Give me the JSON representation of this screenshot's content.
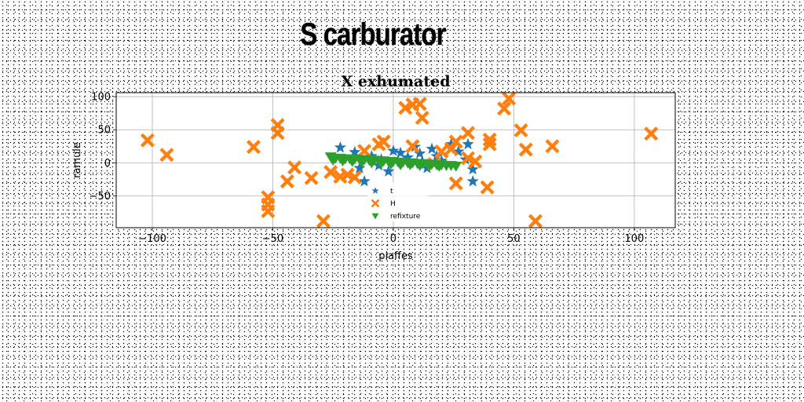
{
  "page": {
    "title": "S carburator"
  },
  "chart_data": {
    "type": "scatter",
    "title": "X exhumated",
    "xlabel": "piaffes",
    "ylabel": "ramule",
    "xlim": [
      -115,
      117
    ],
    "ylim": [
      -98,
      106
    ],
    "xticks": [
      -100,
      -50,
      0,
      50,
      100
    ],
    "yticks": [
      -50,
      0,
      50,
      100
    ],
    "xtick_labels": [
      "−100",
      "−50",
      "0",
      "50",
      "100"
    ],
    "ytick_labels": [
      "−50",
      "0",
      "50",
      "100"
    ],
    "grid": true,
    "legend_position": "lower-center",
    "series": [
      {
        "name": "t",
        "marker": "star",
        "color": "#1f77b4",
        "points": [
          [
            -22,
            23
          ],
          [
            -12,
            -28
          ],
          [
            -9,
            10
          ],
          [
            -5,
            5
          ],
          [
            -2,
            -13
          ],
          [
            0,
            18
          ],
          [
            3,
            15
          ],
          [
            6,
            8
          ],
          [
            9,
            24
          ],
          [
            11,
            14
          ],
          [
            14,
            -8
          ],
          [
            16,
            21
          ],
          [
            18,
            10
          ],
          [
            20,
            3
          ],
          [
            24,
            28
          ],
          [
            27,
            17
          ],
          [
            30,
            5
          ],
          [
            31,
            28
          ],
          [
            33,
            -10
          ],
          [
            33,
            -28
          ],
          [
            -16,
            16
          ],
          [
            -6,
            -4
          ],
          [
            12,
            2
          ],
          [
            -14,
            -8
          ]
        ]
      },
      {
        "name": "H",
        "marker": "x",
        "color": "#ff7f0e",
        "points": [
          [
            -102,
            34
          ],
          [
            -94,
            12
          ],
          [
            -58,
            24
          ],
          [
            -52,
            -52
          ],
          [
            -52,
            -63
          ],
          [
            -52,
            -73
          ],
          [
            -48,
            57
          ],
          [
            -48,
            45
          ],
          [
            -44,
            -28
          ],
          [
            -41,
            -7
          ],
          [
            -34,
            -23
          ],
          [
            -29,
            -88
          ],
          [
            -26,
            -14
          ],
          [
            -22,
            -21
          ],
          [
            -19,
            -18
          ],
          [
            -16,
            -22
          ],
          [
            -12,
            18
          ],
          [
            -6,
            28
          ],
          [
            -4,
            32
          ],
          [
            5,
            83
          ],
          [
            8,
            88
          ],
          [
            11,
            89
          ],
          [
            12,
            68
          ],
          [
            8,
            25
          ],
          [
            20,
            17
          ],
          [
            24,
            21
          ],
          [
            26,
            32
          ],
          [
            26,
            -31
          ],
          [
            31,
            45
          ],
          [
            31,
            7
          ],
          [
            34,
            2
          ],
          [
            39,
            -37
          ],
          [
            40,
            35
          ],
          [
            40,
            28
          ],
          [
            46,
            82
          ],
          [
            48,
            97
          ],
          [
            53,
            49
          ],
          [
            55,
            20
          ],
          [
            59,
            -88
          ],
          [
            66,
            25
          ],
          [
            107,
            44
          ],
          [
            17,
            -2
          ]
        ]
      },
      {
        "name": "refixture",
        "marker": "triangle_down",
        "color": "#2ca02c",
        "points": [
          [
            -26,
            9
          ],
          [
            -24,
            7
          ],
          [
            -22,
            7
          ],
          [
            -20,
            6
          ],
          [
            -18,
            6
          ],
          [
            -16,
            6
          ],
          [
            -14,
            5
          ],
          [
            -12,
            5
          ],
          [
            -10,
            4
          ],
          [
            -8,
            4
          ],
          [
            -6,
            3
          ],
          [
            -4,
            3
          ],
          [
            -2,
            2
          ],
          [
            0,
            2
          ],
          [
            2,
            1
          ],
          [
            4,
            1
          ],
          [
            6,
            0
          ],
          [
            8,
            0
          ],
          [
            10,
            -1
          ],
          [
            12,
            -1
          ],
          [
            14,
            -2
          ],
          [
            16,
            -2
          ],
          [
            18,
            -3
          ],
          [
            20,
            -3
          ],
          [
            22,
            -4
          ],
          [
            24,
            -4
          ],
          [
            26,
            -5
          ],
          [
            -25,
            4
          ],
          [
            -21,
            3
          ],
          [
            -17,
            2
          ],
          [
            -13,
            1
          ],
          [
            -9,
            0
          ],
          [
            -5,
            -1
          ],
          [
            -1,
            -2
          ],
          [
            3,
            -3
          ],
          [
            7,
            -3
          ],
          [
            11,
            -4
          ],
          [
            15,
            -4
          ],
          [
            19,
            -5
          ]
        ]
      }
    ]
  }
}
